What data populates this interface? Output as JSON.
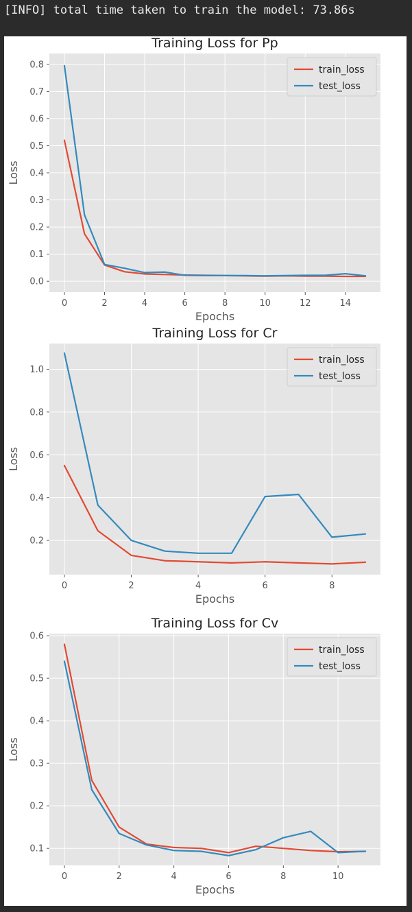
{
  "output": {
    "text": "[INFO] total time taken to train the model: 73.86s"
  },
  "colors": {
    "train_loss": "#E24A33",
    "test_loss": "#348ABD",
    "plot_background": "#E5E5E5",
    "grid": "#FFFFFF",
    "page_background": "#2B2B2B"
  },
  "chart_data": [
    {
      "type": "line",
      "title": "Training Loss for Pp",
      "xlabel": "Epochs",
      "ylabel": "Loss",
      "xlim": [
        -0.75,
        15.75
      ],
      "ylim": [
        -0.04,
        0.84
      ],
      "xticks": [
        0,
        2,
        4,
        6,
        8,
        10,
        12,
        14
      ],
      "yticks": [
        0.0,
        0.1,
        0.2,
        0.3,
        0.4,
        0.5,
        0.6,
        0.7,
        0.8
      ],
      "ytick_labels": [
        "0.0",
        "0.1",
        "0.2",
        "0.3",
        "0.4",
        "0.5",
        "0.6",
        "0.7",
        "0.8"
      ],
      "grid": true,
      "legend": "top-right",
      "x": [
        0,
        1,
        2,
        3,
        4,
        5,
        6,
        7,
        8,
        9,
        10,
        11,
        12,
        13,
        14,
        15
      ],
      "series": [
        {
          "name": "train_loss",
          "values": [
            0.52,
            0.175,
            0.06,
            0.035,
            0.027,
            0.025,
            0.023,
            0.022,
            0.021,
            0.02,
            0.019,
            0.02,
            0.019,
            0.019,
            0.018,
            0.018
          ]
        },
        {
          "name": "test_loss",
          "values": [
            0.795,
            0.245,
            0.062,
            0.048,
            0.032,
            0.034,
            0.022,
            0.021,
            0.021,
            0.021,
            0.02,
            0.021,
            0.022,
            0.022,
            0.028,
            0.02
          ]
        }
      ]
    },
    {
      "type": "line",
      "title": "Training Loss for Cr",
      "xlabel": "Epochs",
      "ylabel": "Loss",
      "xlim": [
        -0.45,
        9.45
      ],
      "ylim": [
        0.04,
        1.12
      ],
      "xticks": [
        0,
        2,
        4,
        6,
        8
      ],
      "yticks": [
        0.2,
        0.4,
        0.6,
        0.8,
        1.0
      ],
      "ytick_labels": [
        "0.2",
        "0.4",
        "0.6",
        "0.8",
        "1.0"
      ],
      "grid": true,
      "legend": "top-right",
      "x": [
        0,
        1,
        2,
        3,
        4,
        5,
        6,
        7,
        8,
        9
      ],
      "series": [
        {
          "name": "train_loss",
          "values": [
            0.55,
            0.245,
            0.13,
            0.105,
            0.1,
            0.095,
            0.1,
            0.095,
            0.09,
            0.098
          ]
        },
        {
          "name": "test_loss",
          "values": [
            1.075,
            0.365,
            0.2,
            0.15,
            0.14,
            0.14,
            0.405,
            0.415,
            0.215,
            0.23
          ]
        }
      ]
    },
    {
      "type": "line",
      "title": "Training Loss for Cv",
      "xlabel": "Epochs",
      "ylabel": "Loss",
      "xlim": [
        -0.55,
        11.55
      ],
      "ylim": [
        0.06,
        0.605
      ],
      "xticks": [
        0,
        2,
        4,
        6,
        8,
        10
      ],
      "yticks": [
        0.1,
        0.2,
        0.3,
        0.4,
        0.5,
        0.6
      ],
      "ytick_labels": [
        "0.1",
        "0.2",
        "0.3",
        "0.4",
        "0.5",
        "0.6"
      ],
      "grid": true,
      "legend": "top-right",
      "x": [
        0,
        1,
        2,
        3,
        4,
        5,
        6,
        7,
        8,
        9,
        10,
        11
      ],
      "series": [
        {
          "name": "train_loss",
          "values": [
            0.58,
            0.26,
            0.15,
            0.11,
            0.102,
            0.1,
            0.09,
            0.105,
            0.1,
            0.095,
            0.092,
            0.093
          ]
        },
        {
          "name": "test_loss",
          "values": [
            0.54,
            0.238,
            0.135,
            0.108,
            0.095,
            0.093,
            0.083,
            0.097,
            0.125,
            0.14,
            0.09,
            0.093
          ]
        }
      ]
    }
  ]
}
